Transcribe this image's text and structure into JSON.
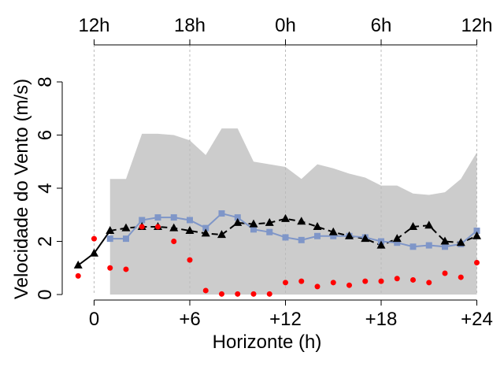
{
  "chart_data": {
    "type": "line",
    "xlabel": "Horizonte (h)",
    "ylabel": "Velocidade do Vento (m/s)",
    "xlim": [
      -1.5,
      25
    ],
    "ylim": [
      0,
      8
    ],
    "x_ticks": [
      {
        "value": 0,
        "label": "0"
      },
      {
        "value": 6,
        "label": "+6"
      },
      {
        "value": 12,
        "label": "+12"
      },
      {
        "value": 18,
        "label": "+18"
      },
      {
        "value": 24,
        "label": "+24"
      }
    ],
    "y_ticks": [
      0,
      2,
      4,
      6,
      8
    ],
    "top_axis_ticks": [
      {
        "value": 0,
        "label": "12h"
      },
      {
        "value": 6,
        "label": "18h"
      },
      {
        "value": 12,
        "label": "0h"
      },
      {
        "value": 18,
        "label": "6h"
      },
      {
        "value": 24,
        "label": "12h"
      }
    ],
    "grid": "vertical dashed lines at x ticks",
    "colors": {
      "band": "#cccccc",
      "observed": "#000000",
      "forecast": "#7f96c8",
      "points": "#ff0000"
    },
    "band": {
      "x": [
        1,
        2,
        3,
        4,
        5,
        6,
        7,
        8,
        9,
        10,
        11,
        12,
        13,
        14,
        15,
        16,
        17,
        18,
        19,
        20,
        21,
        22,
        23,
        24
      ],
      "upper": [
        4.35,
        4.35,
        6.05,
        6.05,
        6.0,
        5.8,
        5.25,
        6.25,
        6.25,
        5.0,
        4.9,
        4.8,
        4.35,
        4.9,
        4.75,
        4.55,
        4.4,
        4.1,
        4.1,
        3.8,
        3.75,
        3.85,
        4.35,
        5.35
      ],
      "lower": [
        0,
        0,
        0,
        0,
        0,
        0,
        0,
        0,
        0,
        0,
        0,
        0,
        0,
        0,
        0,
        0,
        0,
        0,
        0,
        0,
        0,
        0,
        0,
        0
      ]
    },
    "series": [
      {
        "marker": "triangle",
        "line": "solid-then-dashed",
        "x": [
          -1,
          0,
          1,
          2,
          3,
          4,
          5,
          6,
          7,
          8,
          9,
          10,
          11,
          12,
          13,
          14,
          15,
          16,
          17,
          18,
          19,
          20,
          21,
          22,
          23,
          24
        ],
        "values": [
          1.1,
          1.55,
          2.4,
          2.5,
          2.55,
          2.55,
          2.5,
          2.4,
          2.3,
          2.25,
          2.7,
          2.65,
          2.7,
          2.85,
          2.75,
          2.55,
          2.35,
          2.2,
          2.1,
          1.85,
          2.1,
          2.55,
          2.6,
          2.0,
          1.95,
          2.2
        ]
      },
      {
        "marker": "square",
        "line": "solid",
        "x": [
          1,
          2,
          3,
          4,
          5,
          6,
          7,
          8,
          9,
          10,
          11,
          12,
          13,
          14,
          15,
          16,
          17,
          18,
          19,
          20,
          21,
          22,
          23,
          24
        ],
        "values": [
          2.1,
          2.1,
          2.8,
          2.9,
          2.9,
          2.8,
          2.5,
          3.05,
          2.9,
          2.45,
          2.35,
          2.15,
          2.05,
          2.2,
          2.2,
          2.2,
          2.15,
          2.0,
          1.95,
          1.8,
          1.85,
          1.8,
          1.9,
          2.4
        ]
      },
      {
        "marker": "dot",
        "line": "none",
        "x": [
          -1,
          0,
          1,
          2,
          3,
          4,
          5,
          6,
          7,
          8,
          9,
          10,
          11,
          12,
          13,
          14,
          15,
          16,
          17,
          18,
          19,
          20,
          21,
          22,
          23,
          24
        ],
        "values": [
          0.7,
          2.1,
          1.0,
          0.95,
          2.55,
          2.55,
          2.0,
          1.3,
          0.15,
          0.02,
          0.02,
          0.02,
          0.02,
          0.45,
          0.5,
          0.3,
          0.45,
          0.35,
          0.5,
          0.5,
          0.6,
          0.55,
          0.45,
          0.8,
          0.65,
          1.2
        ]
      }
    ]
  }
}
